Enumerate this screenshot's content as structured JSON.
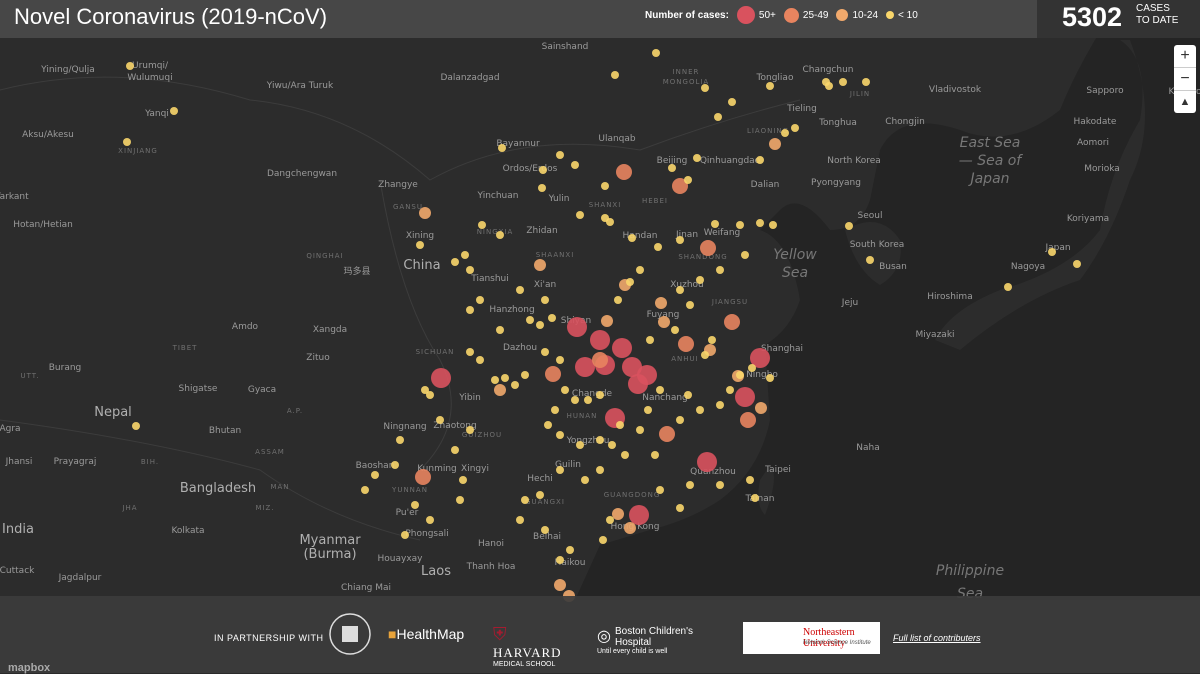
{
  "header": {
    "title": "Novel Coronavirus (2019-nCoV)",
    "legend_label": "Number of cases:",
    "legend": [
      {
        "label": "50+",
        "color": "#d9525e"
      },
      {
        "label": "25-49",
        "color": "#e8845f"
      },
      {
        "label": "10-24",
        "color": "#f1a96c"
      },
      {
        "label": "< 10",
        "color": "#f9d66b"
      }
    ],
    "total": "5302",
    "total_label": [
      "CASES",
      "TO DATE"
    ]
  },
  "controls": [
    "+",
    "−"
  ],
  "map_labels": [
    "Urumqi/",
    "Wulumuqi",
    "Yining/Qulja",
    "Yiwu/Ara Turuk",
    "Dalanzadgad",
    "Sainshand",
    "INNER",
    "MONGOLIA",
    "Changchun",
    "Tongliao",
    "JILIN",
    "Vladivostok",
    "Sapporo",
    "Kushiro",
    "Aksu/Akesu",
    "XINJIANG",
    "Yanqi",
    "Bayannur",
    "Ulanqab",
    "Tieling",
    "Tonghua",
    "Chongjin",
    "Hakodate",
    "Aomori",
    "Dangchengwan",
    "Ordos/Erdos",
    "Beijing",
    "Qinhuangdao",
    "LIAONING",
    "North Korea",
    "East Sea",
    "— Sea of",
    "Japan",
    "Morioka",
    "Zhangye",
    "Yinchuan",
    "Yulin",
    "Dalian",
    "Pyongyang",
    "Yarkant",
    "GANSU",
    "SHANXI",
    "HEBEI",
    "Hotan/Hetian",
    "Zhidan",
    "Handan",
    "Jinan",
    "Weifang",
    "Seoul",
    "Koriyama",
    "Xining",
    "NINGXIA",
    "QINGHAI",
    "SHAANXI",
    "SHANDONG",
    "Yellow",
    "Sea",
    "South Korea",
    "Japan",
    "玛多县",
    "China",
    "Tianshui",
    "Xi'an",
    "Busan",
    "Nagoya",
    "Xuzhou",
    "Hanzhong",
    "Fuyang",
    "JIANGSU",
    "Jeju",
    "Hiroshima",
    "Amdo",
    "Xangda",
    "Shiyan",
    "Miyazaki",
    "TIBET",
    "SICHUAN",
    "Dazhou",
    "ANHUI",
    "Shanghai",
    "Zituo",
    "Burang",
    "UTT.",
    "Shigatse",
    "Gyaca",
    "Ningbo",
    "Changde",
    "Nanchang",
    "Nepal",
    "Yibin",
    "A.P.",
    "HUNAN",
    "Agra",
    "Bhutan",
    "Ningnang",
    "Zhaotong",
    "GUIZHOU",
    "Yongzhou",
    "Naha",
    "Jhansi",
    "Prayagraj",
    "BIH.",
    "ASSAM",
    "Baoshan",
    "Kunming",
    "Xingyi",
    "Guilin",
    "Quanzhou",
    "Taipei",
    "Bangladesh",
    "MAN",
    "YUNNAN",
    "Hechi",
    "GUANGDONG",
    "Tainan",
    "JHA",
    "MIZ.",
    "India",
    "Kolkata",
    "Myanmar",
    "(Burma)",
    "Pu'er",
    "GUANGXI",
    "Hong Kong",
    "Phongsali",
    "Beihai",
    "Hanoi",
    "Houayxay",
    "Laos",
    "Thanh Hoa",
    "Haikou",
    "Philippine",
    "Sea",
    "Cuttack",
    "Jagdalpur",
    "Chiang Mai"
  ],
  "footer": {
    "partnership": "IN PARTNERSHIP WITH",
    "healthmap": "HealthMap",
    "harvard": "HARVARD",
    "harvard_sub": "MEDICAL SCHOOL",
    "boston": "Boston Children's Hospital",
    "boston_sub": "Until every child is well",
    "northeastern": "Northeastern University",
    "northeastern_sub": "Network Science Institute",
    "contributors": "Full list of contributers",
    "mapbox": "mapbox"
  }
}
